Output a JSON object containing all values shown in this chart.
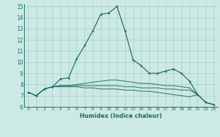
{
  "xlabel": "Humidex (Indice chaleur)",
  "xlim": [
    -0.5,
    23.5
  ],
  "ylim": [
    6,
    15.2
  ],
  "yticks": [
    6,
    7,
    8,
    9,
    10,
    11,
    12,
    13,
    14,
    15
  ],
  "xticks": [
    0,
    1,
    2,
    3,
    4,
    5,
    6,
    7,
    8,
    9,
    10,
    11,
    12,
    13,
    14,
    15,
    16,
    17,
    18,
    19,
    20,
    21,
    22,
    23
  ],
  "bg_color": "#cce9e5",
  "grid_color": "#a0cdc8",
  "line_color": "#1e6b60",
  "series": [
    [
      7.3,
      7.0,
      7.6,
      7.8,
      8.5,
      8.6,
      10.3,
      11.5,
      12.8,
      14.3,
      14.4,
      15.0,
      12.8,
      10.2,
      9.7,
      9.0,
      9.0,
      9.2,
      9.4,
      9.0,
      8.3,
      7.1,
      6.4,
      6.2
    ],
    [
      7.3,
      7.0,
      7.6,
      7.8,
      7.9,
      7.9,
      8.0,
      8.1,
      8.2,
      8.3,
      8.4,
      8.4,
      8.3,
      8.2,
      8.1,
      8.1,
      8.0,
      7.9,
      7.9,
      7.8,
      7.7,
      7.1,
      6.4,
      6.2
    ],
    [
      7.3,
      7.0,
      7.6,
      7.8,
      7.8,
      7.8,
      7.8,
      7.7,
      7.7,
      7.6,
      7.6,
      7.6,
      7.5,
      7.5,
      7.4,
      7.4,
      7.3,
      7.2,
      7.1,
      7.0,
      6.9,
      7.1,
      6.4,
      6.2
    ],
    [
      7.3,
      7.0,
      7.6,
      7.8,
      7.9,
      7.9,
      7.9,
      7.9,
      7.9,
      7.9,
      7.9,
      7.9,
      7.8,
      7.8,
      7.7,
      7.7,
      7.7,
      7.6,
      7.6,
      7.5,
      7.5,
      7.1,
      6.4,
      6.2
    ]
  ]
}
